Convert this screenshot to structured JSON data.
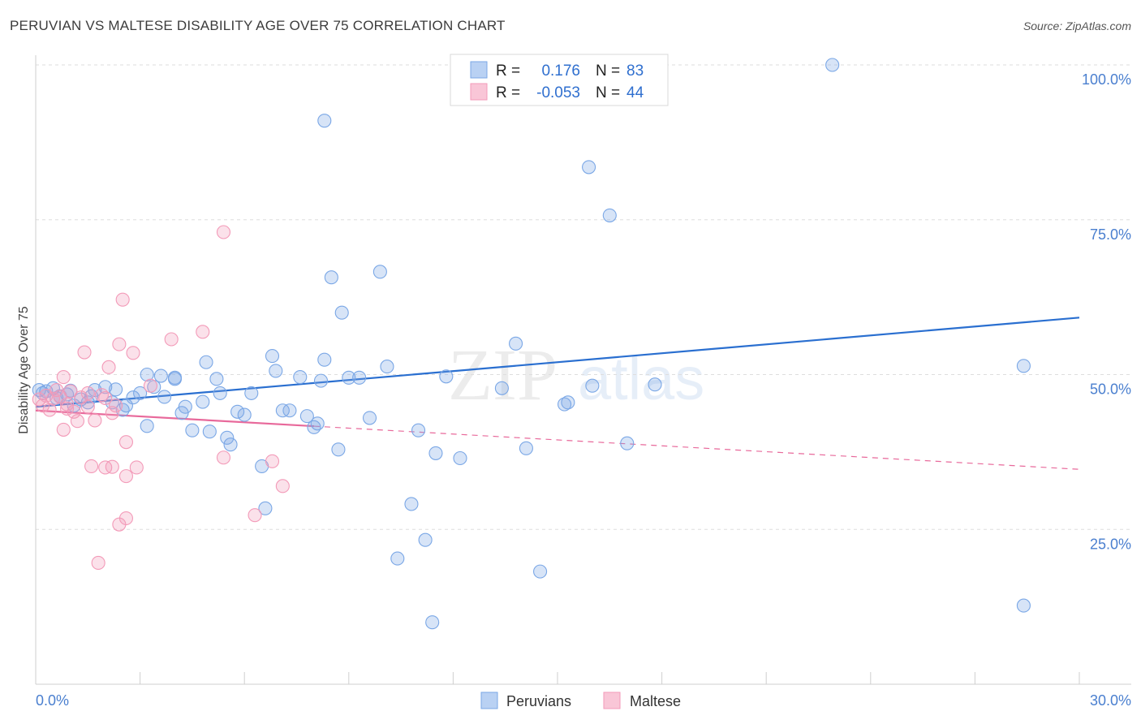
{
  "title": "PERUVIAN VS MALTESE DISABILITY AGE OVER 75 CORRELATION CHART",
  "source": "Source: ZipAtlas.com",
  "watermark": {
    "zip": "ZIP",
    "atlas": "atlas"
  },
  "chart_data": {
    "type": "scatter",
    "ylabel": "Disability Age Over 75",
    "xlim": [
      0,
      30
    ],
    "ylim": [
      0,
      100
    ],
    "x_tick_labels": [
      "0.0%",
      "30.0%"
    ],
    "y_ticks": [
      25,
      50,
      75,
      100
    ],
    "y_tick_labels": [
      "25.0%",
      "50.0%",
      "75.0%",
      "100.0%"
    ],
    "legend_top": [
      {
        "r_label": "R =",
        "r_value": "0.176",
        "n_label": "N =",
        "n_value": "83"
      },
      {
        "r_label": "R =",
        "r_value": "-0.053",
        "n_label": "N =",
        "n_value": "44"
      }
    ],
    "series": [
      {
        "name": "Peruvians",
        "color": "#7aa7e6",
        "line_color": "#2a6fd0",
        "trend": {
          "x0": 0,
          "y0": 44.8,
          "x1": 30,
          "y1": 59.2,
          "solid_to": 30
        },
        "points": [
          [
            0.1,
            47.5
          ],
          [
            0.3,
            47.3
          ],
          [
            0.5,
            47.8
          ],
          [
            0.7,
            46.5
          ],
          [
            0.9,
            46.8
          ],
          [
            1.1,
            45.0
          ],
          [
            1.3,
            46.0
          ],
          [
            1.5,
            45.5
          ],
          [
            1.7,
            47.5
          ],
          [
            2.0,
            48.0
          ],
          [
            2.3,
            47.6
          ],
          [
            2.5,
            44.3
          ],
          [
            2.6,
            45.0
          ],
          [
            2.8,
            46.3
          ],
          [
            3.0,
            47.0
          ],
          [
            3.2,
            50.0
          ],
          [
            3.4,
            48.0
          ],
          [
            3.2,
            41.7
          ],
          [
            3.7,
            46.4
          ],
          [
            4.0,
            49.3
          ],
          [
            4.2,
            43.8
          ],
          [
            4.3,
            44.8
          ],
          [
            4.0,
            49.5
          ],
          [
            4.5,
            41.0
          ],
          [
            4.8,
            45.6
          ],
          [
            4.9,
            52.0
          ],
          [
            5.0,
            40.8
          ],
          [
            5.2,
            49.3
          ],
          [
            5.3,
            47.0
          ],
          [
            5.5,
            39.8
          ],
          [
            5.6,
            38.7
          ],
          [
            5.8,
            44.0
          ],
          [
            6.0,
            43.5
          ],
          [
            6.2,
            47.0
          ],
          [
            6.5,
            35.2
          ],
          [
            6.8,
            53.0
          ],
          [
            6.9,
            50.6
          ],
          [
            6.6,
            28.4
          ],
          [
            7.1,
            44.2
          ],
          [
            7.3,
            44.2
          ],
          [
            7.6,
            49.6
          ],
          [
            7.8,
            43.3
          ],
          [
            8.0,
            41.5
          ],
          [
            8.1,
            42.1
          ],
          [
            8.2,
            49.0
          ],
          [
            8.3,
            52.4
          ],
          [
            8.5,
            65.7
          ],
          [
            8.7,
            37.9
          ],
          [
            8.8,
            60.0
          ],
          [
            9.0,
            49.5
          ],
          [
            9.3,
            49.5
          ],
          [
            9.6,
            43.0
          ],
          [
            9.9,
            66.6
          ],
          [
            10.1,
            51.3
          ],
          [
            10.4,
            20.3
          ],
          [
            10.8,
            29.1
          ],
          [
            11.0,
            41.0
          ],
          [
            11.2,
            23.3
          ],
          [
            11.5,
            37.3
          ],
          [
            11.8,
            49.7
          ],
          [
            12.2,
            36.5
          ],
          [
            8.3,
            91.0
          ],
          [
            11.4,
            10.0
          ],
          [
            13.4,
            47.8
          ],
          [
            13.8,
            55.0
          ],
          [
            14.1,
            38.1
          ],
          [
            14.5,
            18.2
          ],
          [
            15.3,
            45.5
          ],
          [
            15.9,
            83.5
          ],
          [
            16.0,
            48.2
          ],
          [
            16.5,
            75.7
          ],
          [
            17.0,
            38.9
          ],
          [
            17.8,
            48.4
          ],
          [
            22.9,
            100.0
          ],
          [
            28.4,
            51.4
          ],
          [
            28.4,
            12.7
          ],
          [
            0.2,
            47.0
          ],
          [
            0.6,
            46.2
          ],
          [
            1.0,
            47.4
          ],
          [
            1.6,
            46.5
          ],
          [
            2.2,
            45.5
          ],
          [
            15.2,
            45.2
          ],
          [
            3.6,
            49.8
          ]
        ]
      },
      {
        "name": "Maltese",
        "color": "#f39ab8",
        "line_color": "#e8699b",
        "trend": {
          "x0": 0,
          "y0": 44.2,
          "x1": 30,
          "y1": 34.7,
          "solid_to": 8.0
        },
        "points": [
          [
            0.1,
            46.0
          ],
          [
            0.2,
            45.0
          ],
          [
            0.3,
            46.6
          ],
          [
            0.4,
            44.3
          ],
          [
            0.5,
            46.1
          ],
          [
            0.6,
            47.5
          ],
          [
            0.7,
            46.4
          ],
          [
            0.8,
            49.6
          ],
          [
            0.8,
            41.1
          ],
          [
            0.9,
            45.2
          ],
          [
            1.0,
            47.3
          ],
          [
            1.1,
            44.0
          ],
          [
            1.2,
            42.5
          ],
          [
            1.3,
            46.3
          ],
          [
            1.4,
            53.6
          ],
          [
            1.5,
            47.0
          ],
          [
            1.6,
            35.2
          ],
          [
            1.7,
            42.6
          ],
          [
            1.8,
            19.6
          ],
          [
            1.9,
            46.7
          ],
          [
            2.0,
            35.0
          ],
          [
            2.1,
            51.2
          ],
          [
            2.2,
            43.8
          ],
          [
            2.2,
            35.1
          ],
          [
            2.3,
            45.0
          ],
          [
            2.4,
            54.9
          ],
          [
            2.4,
            25.8
          ],
          [
            2.5,
            62.1
          ],
          [
            2.6,
            33.6
          ],
          [
            2.6,
            26.8
          ],
          [
            2.6,
            39.1
          ],
          [
            2.8,
            53.5
          ],
          [
            2.9,
            35.0
          ],
          [
            3.3,
            48.2
          ],
          [
            3.9,
            55.7
          ],
          [
            4.8,
            56.9
          ],
          [
            5.4,
            36.6
          ],
          [
            5.4,
            73.0
          ],
          [
            6.3,
            27.3
          ],
          [
            6.8,
            36.0
          ],
          [
            7.1,
            32.0
          ],
          [
            0.9,
            44.5
          ],
          [
            1.5,
            44.8
          ],
          [
            2.0,
            46.2
          ]
        ]
      }
    ]
  }
}
